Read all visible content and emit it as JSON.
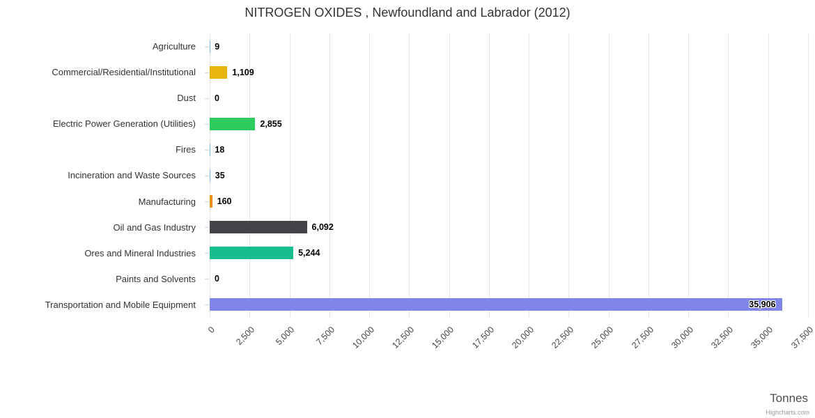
{
  "title": "NITROGEN OXIDES , Newfoundland and Labrador (2012)",
  "credit": "Highcharts.com",
  "chart_data": {
    "type": "bar",
    "orientation": "horizontal",
    "title": "NITROGEN OXIDES , Newfoundland and Labrador (2012)",
    "xlabel": "Tonnes",
    "xlim": [
      0,
      37500
    ],
    "tick_interval": 2500,
    "grid": true,
    "legend": "none",
    "categories": [
      "Agriculture",
      "Commercial/Residential/Institutional",
      "Dust",
      "Electric Power Generation (Utilities)",
      "Fires",
      "Incineration and Waste Sources",
      "Manufacturing",
      "Oil and Gas Industry",
      "Ores and Mineral Industries",
      "Paints and Solvents",
      "Transportation and Mobile Equipment"
    ],
    "values": [
      9,
      1109,
      0,
      2855,
      18,
      35,
      160,
      6092,
      5244,
      0,
      35906
    ],
    "value_labels": [
      "9",
      "1,109",
      "0",
      "2,855",
      "18",
      "35",
      "160",
      "6,092",
      "5,244",
      "0",
      "35,906"
    ],
    "colors": [
      "#7cb5ec",
      "#e9b40e",
      "#7cb5ec",
      "#2ecc5e",
      "#7cb5ec",
      "#7cb5ec",
      "#ee8d18",
      "#434348",
      "#18bd8d",
      "#7cb5ec",
      "#8085e9"
    ]
  }
}
